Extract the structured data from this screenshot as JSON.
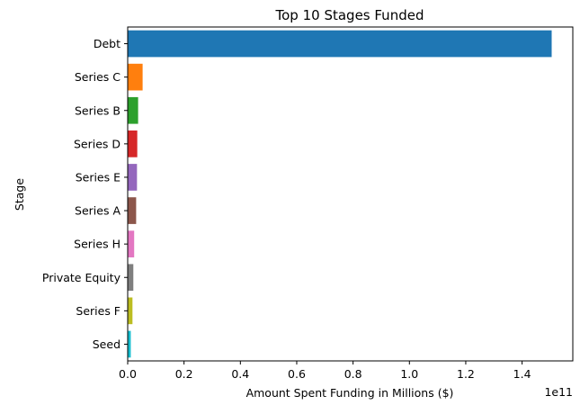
{
  "chart_data": {
    "type": "bar",
    "orientation": "horizontal",
    "title": "Top 10 Stages Funded",
    "xlabel": "Amount Spent Funding in Millions ($)",
    "ylabel": "Stage",
    "x_offset_label": "1e11",
    "xlim": [
      0,
      1.58
    ],
    "xticks": [
      0,
      0.2,
      0.4,
      0.6,
      0.8,
      1.0,
      1.2,
      1.4
    ],
    "xtick_labels": [
      "0.0",
      "0.2",
      "0.4",
      "0.6",
      "0.8",
      "1.0",
      "1.2",
      "1.4"
    ],
    "grid": false,
    "categories": [
      "Debt",
      "Series C",
      "Series B",
      "Series D",
      "Series E",
      "Series A",
      "Series H",
      "Private Equity",
      "Series F",
      "Seed"
    ],
    "values": [
      1.505,
      0.053,
      0.037,
      0.034,
      0.033,
      0.03,
      0.023,
      0.02,
      0.017,
      0.011
    ],
    "colors": [
      "#1f77b4",
      "#ff7f0e",
      "#2ca02c",
      "#d62728",
      "#9467bd",
      "#8c564b",
      "#e377c2",
      "#7f7f7f",
      "#bcbd22",
      "#17becf"
    ]
  }
}
